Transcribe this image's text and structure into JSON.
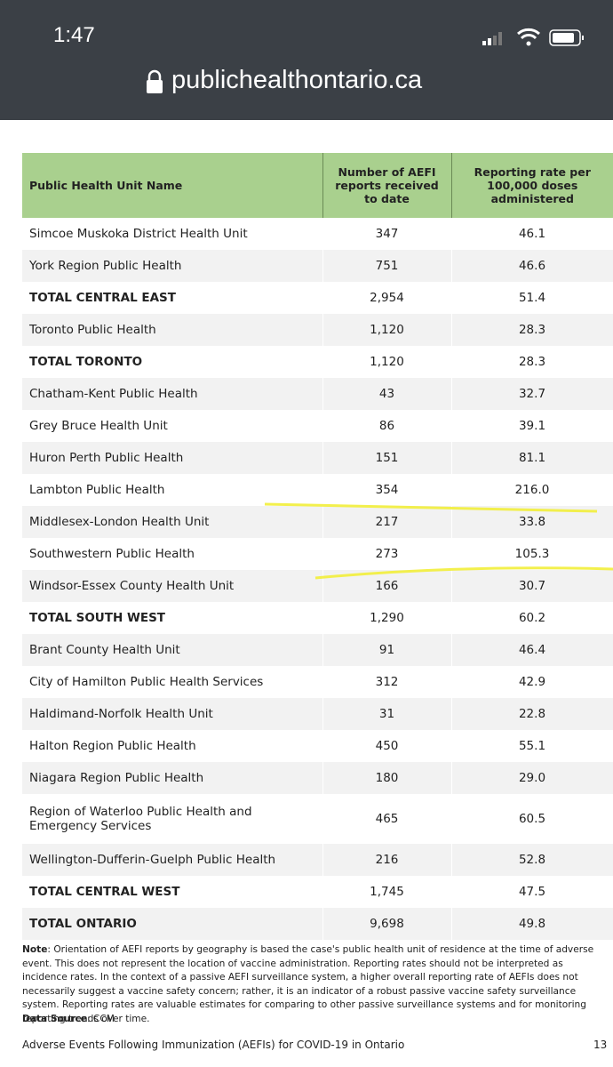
{
  "status_bar": {
    "time": "1:47",
    "url": "publichealthontario.ca"
  },
  "table": {
    "columns": [
      "Public Health Unit Name",
      "Number of AEFI reports received to date",
      "Reporting rate per 100,000 doses administered"
    ],
    "rows": [
      [
        "Simcoe Muskoka District Health Unit",
        "347",
        "46.1"
      ],
      [
        "York Region Public Health",
        "751",
        "46.6"
      ],
      [
        "TOTAL CENTRAL EAST",
        "2,954",
        "51.4"
      ],
      [
        "Toronto Public Health",
        "1,120",
        "28.3"
      ],
      [
        "TOTAL TORONTO",
        "1,120",
        "28.3"
      ],
      [
        "Chatham-Kent Public Health",
        "43",
        "32.7"
      ],
      [
        "Grey Bruce Health Unit",
        "86",
        "39.1"
      ],
      [
        "Huron Perth Public Health",
        "151",
        "81.1"
      ],
      [
        "Lambton Public Health",
        "354",
        "216.0"
      ],
      [
        "Middlesex-London Health Unit",
        "217",
        "33.8"
      ],
      [
        "Southwestern Public Health",
        "273",
        "105.3"
      ],
      [
        "Windsor-Essex County Health Unit",
        "166",
        "30.7"
      ],
      [
        "TOTAL SOUTH WEST",
        "1,290",
        "60.2"
      ],
      [
        "Brant County Health Unit",
        "91",
        "46.4"
      ],
      [
        "City of Hamilton Public Health Services",
        "312",
        "42.9"
      ],
      [
        "Haldimand-Norfolk Health Unit",
        "31",
        "22.8"
      ],
      [
        "Halton Region Public Health",
        "450",
        "55.1"
      ],
      [
        "Niagara Region Public Health",
        "180",
        "29.0"
      ],
      [
        "Region of Waterloo Public Health and Emergency Services",
        "465",
        "60.5"
      ],
      [
        "Wellington-Dufferin-Guelph Public Health",
        "216",
        "52.8"
      ],
      [
        "TOTAL CENTRAL WEST",
        "1,745",
        "47.5"
      ],
      [
        "TOTAL ONTARIO",
        "9,698",
        "49.8"
      ]
    ]
  },
  "note": {
    "label": "Note",
    "text": ": Orientation of AEFI reports by geography is based the case's public health unit of residence at the time of adverse event. This does not represent the location of vaccine administration. Reporting rates should not be interpreted as incidence rates. In the context of a passive AEFI surveillance system, a higher overall reporting rate of AEFIs does not necessarily suggest a vaccine safety concern; rather, it is an indicator of a robust passive vaccine safety surveillance system. Reporting rates are valuable estimates for comparing to other passive surveillance systems and for monitoring reporting trends over time."
  },
  "data_source": {
    "label": "Data Source",
    "text": ": CCM"
  },
  "footer": {
    "title": "Adverse Events Following Immunization (AEFIs) for COVID-19 in Ontario",
    "page": "13"
  }
}
